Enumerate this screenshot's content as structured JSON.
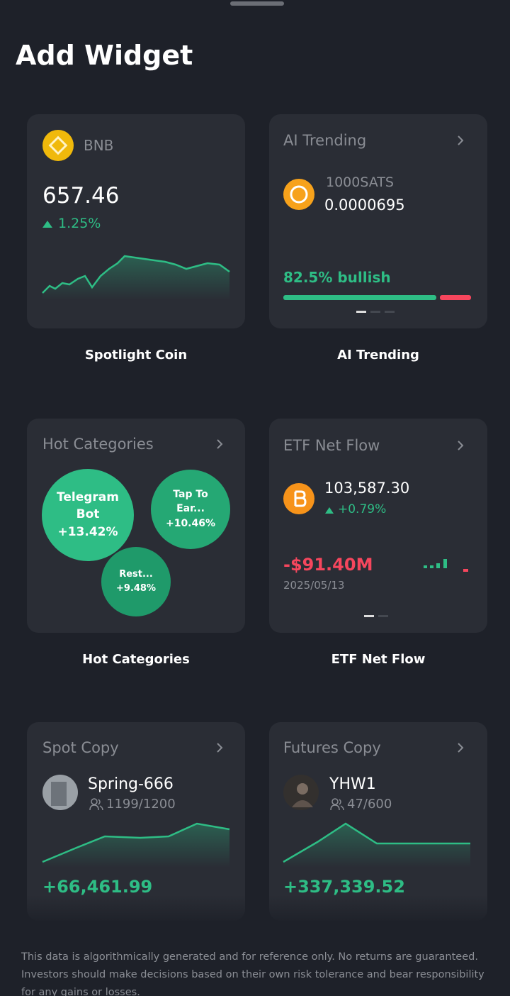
{
  "header": {
    "title": "Add Widget"
  },
  "widgets": [
    {
      "label": "Spotlight Coin",
      "coin": "BNB",
      "price": "657.46",
      "change": "1.25%"
    },
    {
      "label": "AI Trending",
      "title": "AI Trending",
      "coin": "1000SATS",
      "price": "0.0000695",
      "sentiment": "82.5% bullish"
    },
    {
      "label": "Hot Categories",
      "title": "Hot Categories",
      "bubbles": [
        {
          "name": "Telegram Bot",
          "change": "+13.42%"
        },
        {
          "name": "Tap To Ear...",
          "change": "+10.46%"
        },
        {
          "name": "Rest...",
          "change": "+9.48%"
        }
      ]
    },
    {
      "label": "ETF Net Flow",
      "title": "ETF Net Flow",
      "price": "103,587.30",
      "change": "+0.79%",
      "flow": "-$91.40M",
      "date": "2025/05/13"
    },
    {
      "title": "Spot Copy",
      "trader": "Spring-666",
      "followers": "1199/1200",
      "pnl": "+66,461.99"
    },
    {
      "title": "Futures Copy",
      "trader": "YHW1",
      "followers": "47/600",
      "pnl": "+337,339.52"
    }
  ],
  "disclaimer": "This data is algorithmically generated and for reference only. No returns are guaranteed. Investors should make decisions based on their own risk tolerance and bear responsibility for any gains or losses."
}
